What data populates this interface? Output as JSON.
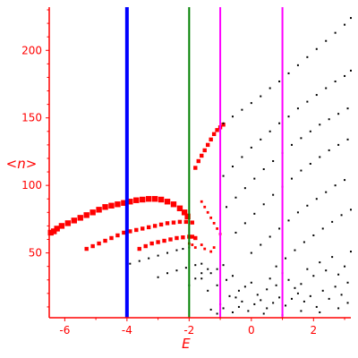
{
  "colors": {
    "axis": "#ff0000",
    "tick_label": "#ff0000",
    "red_points": "#ff0000",
    "black_points": "#000000",
    "blue_line": "#0000ff",
    "green_line": "#008000",
    "magenta_line": "#ff00ff"
  },
  "chart_data": {
    "type": "scatter",
    "title": "",
    "xlabel": "E",
    "ylabel": "<n>",
    "xlim": [
      -6.5,
      3.2
    ],
    "ylim": [
      2,
      232
    ],
    "x_ticks": [
      -6,
      -4,
      -2,
      0,
      2
    ],
    "y_ticks": [
      50,
      100,
      150,
      200
    ],
    "grid": false,
    "vertical_lines": [
      {
        "x": -4.0,
        "color": "#0000ff",
        "weight": "heavy"
      },
      {
        "x": -2.0,
        "color": "#008000",
        "weight": "medium"
      },
      {
        "x": -1.0,
        "color": "#ff00ff",
        "weight": "medium"
      },
      {
        "x": 1.0,
        "color": "#ff00ff",
        "weight": "medium"
      }
    ],
    "series": [
      {
        "color": "#ff0000",
        "marker": "large",
        "points": [
          [
            -6.45,
            65
          ],
          [
            -6.35,
            66
          ],
          [
            -6.25,
            68
          ],
          [
            -6.1,
            70
          ],
          [
            -5.9,
            72
          ],
          [
            -5.7,
            74
          ],
          [
            -5.5,
            76
          ],
          [
            -5.3,
            78
          ],
          [
            -5.1,
            80
          ],
          [
            -4.9,
            82
          ],
          [
            -4.7,
            84
          ],
          [
            -4.5,
            85
          ],
          [
            -4.3,
            86
          ],
          [
            -4.1,
            87
          ],
          [
            -3.9,
            88
          ],
          [
            -3.7,
            89
          ],
          [
            -3.5,
            89.5
          ],
          [
            -3.3,
            90
          ],
          [
            -3.1,
            90
          ],
          [
            -2.9,
            89.5
          ],
          [
            -2.7,
            88
          ],
          [
            -2.5,
            86
          ],
          [
            -2.3,
            83
          ],
          [
            -2.15,
            80
          ],
          [
            -2.05,
            77
          ]
        ]
      },
      {
        "color": "#ff0000",
        "marker": "medium",
        "points": [
          [
            -5.3,
            53
          ],
          [
            -5.1,
            55
          ],
          [
            -4.9,
            57
          ],
          [
            -4.7,
            59
          ],
          [
            -4.5,
            61
          ],
          [
            -4.3,
            63
          ],
          [
            -4.1,
            65
          ],
          [
            -3.9,
            66
          ],
          [
            -3.7,
            67
          ],
          [
            -3.5,
            68
          ],
          [
            -3.3,
            69
          ],
          [
            -3.1,
            70
          ],
          [
            -2.9,
            71
          ],
          [
            -2.7,
            72
          ],
          [
            -2.5,
            72.5
          ],
          [
            -2.3,
            73
          ],
          [
            -2.1,
            73
          ],
          [
            -1.9,
            72.5
          ]
        ]
      },
      {
        "color": "#ff0000",
        "marker": "medium",
        "points": [
          [
            -3.6,
            53
          ],
          [
            -3.4,
            55
          ],
          [
            -3.2,
            57
          ],
          [
            -3.0,
            58
          ],
          [
            -2.8,
            59
          ],
          [
            -2.6,
            60
          ],
          [
            -2.4,
            61
          ],
          [
            -2.2,
            61.5
          ],
          [
            -2.0,
            62
          ],
          [
            -1.9,
            62
          ],
          [
            -1.8,
            61
          ]
        ]
      },
      {
        "color": "#ff0000",
        "marker": "medium",
        "points": [
          [
            -1.8,
            113
          ],
          [
            -1.7,
            118
          ],
          [
            -1.6,
            122
          ],
          [
            -1.5,
            126
          ],
          [
            -1.4,
            130
          ],
          [
            -1.3,
            134
          ],
          [
            -1.2,
            138
          ],
          [
            -1.1,
            141
          ],
          [
            -1.0,
            143
          ],
          [
            -0.9,
            145
          ]
        ]
      },
      {
        "color": "#ff0000",
        "marker": "small",
        "points": [
          [
            -1.6,
            88
          ],
          [
            -1.5,
            84
          ],
          [
            -1.4,
            80
          ],
          [
            -1.3,
            76
          ],
          [
            -1.2,
            72
          ],
          [
            -1.1,
            68
          ],
          [
            -1.0,
            64
          ],
          [
            -2.0,
            57
          ],
          [
            -1.9,
            56
          ],
          [
            -1.8,
            54
          ],
          [
            -1.6,
            56
          ],
          [
            -1.5,
            53
          ],
          [
            -1.3,
            51
          ],
          [
            -1.2,
            54
          ]
        ]
      },
      {
        "color": "#000000",
        "marker": "tiny",
        "points": [
          [
            -0.9,
            146
          ],
          [
            -0.6,
            151
          ],
          [
            -0.3,
            156
          ],
          [
            0.0,
            161
          ],
          [
            0.3,
            166
          ],
          [
            0.6,
            172
          ],
          [
            0.9,
            177
          ],
          [
            1.2,
            183
          ],
          [
            1.5,
            189
          ],
          [
            1.8,
            195
          ],
          [
            2.1,
            201
          ],
          [
            2.4,
            207
          ],
          [
            2.7,
            213
          ],
          [
            3.0,
            219
          ],
          [
            3.2,
            224
          ]
        ]
      },
      {
        "color": "#000000",
        "marker": "tiny",
        "points": [
          [
            -0.9,
            107
          ],
          [
            -0.6,
            114
          ],
          [
            -0.3,
            121
          ],
          [
            0.0,
            128
          ],
          [
            0.3,
            134
          ],
          [
            0.6,
            140
          ],
          [
            0.9,
            146
          ],
          [
            1.2,
            151
          ],
          [
            1.5,
            157
          ],
          [
            1.8,
            162
          ],
          [
            2.1,
            167
          ],
          [
            2.4,
            172
          ],
          [
            2.7,
            177
          ],
          [
            3.0,
            181
          ],
          [
            3.2,
            185
          ]
        ]
      },
      {
        "color": "#000000",
        "marker": "tiny",
        "points": [
          [
            -0.8,
            84
          ],
          [
            -0.5,
            91
          ],
          [
            -0.2,
            98
          ],
          [
            0.1,
            105
          ],
          [
            0.4,
            112
          ],
          [
            0.7,
            118
          ],
          [
            1.0,
            124
          ],
          [
            1.3,
            130
          ],
          [
            1.6,
            135
          ],
          [
            1.9,
            140
          ],
          [
            2.2,
            145
          ],
          [
            2.5,
            149
          ],
          [
            2.8,
            153
          ],
          [
            3.1,
            157
          ]
        ]
      },
      {
        "color": "#000000",
        "marker": "tiny",
        "points": [
          [
            -0.5,
            65
          ],
          [
            -0.2,
            72
          ],
          [
            0.1,
            79
          ],
          [
            0.4,
            86
          ],
          [
            0.7,
            93
          ],
          [
            1.0,
            99
          ],
          [
            1.3,
            105
          ],
          [
            1.6,
            111
          ],
          [
            1.9,
            116
          ],
          [
            2.2,
            121
          ],
          [
            2.5,
            126
          ],
          [
            2.8,
            130
          ],
          [
            3.1,
            134
          ]
        ]
      },
      {
        "color": "#000000",
        "marker": "tiny",
        "points": [
          [
            0.0,
            50
          ],
          [
            0.3,
            56
          ],
          [
            0.6,
            62
          ],
          [
            0.9,
            68
          ],
          [
            1.2,
            74
          ],
          [
            1.5,
            80
          ],
          [
            1.8,
            85
          ],
          [
            2.1,
            90
          ],
          [
            2.4,
            95
          ],
          [
            2.7,
            100
          ],
          [
            3.0,
            104
          ]
        ]
      },
      {
        "color": "#000000",
        "marker": "tiny",
        "points": [
          [
            0.8,
            40
          ],
          [
            1.1,
            46
          ],
          [
            1.4,
            52
          ],
          [
            1.7,
            58
          ],
          [
            2.0,
            63
          ],
          [
            2.3,
            68
          ],
          [
            2.6,
            73
          ],
          [
            2.9,
            78
          ],
          [
            3.2,
            82
          ]
        ]
      },
      {
        "color": "#000000",
        "marker": "tiny",
        "points": [
          [
            -3.9,
            42
          ],
          [
            -3.6,
            44
          ],
          [
            -3.3,
            46
          ],
          [
            -3.0,
            48
          ],
          [
            -2.7,
            50
          ],
          [
            -2.4,
            52
          ],
          [
            -2.2,
            53
          ],
          [
            -2.0,
            54
          ]
        ]
      },
      {
        "color": "#000000",
        "marker": "tiny",
        "points": [
          [
            -3.0,
            32
          ],
          [
            -2.7,
            35
          ],
          [
            -2.4,
            37
          ],
          [
            -2.1,
            39
          ],
          [
            -1.8,
            41
          ],
          [
            -1.6,
            42
          ]
        ]
      },
      {
        "color": "#000000",
        "marker": "tiny",
        "points": [
          [
            -2.0,
            26
          ],
          [
            -1.8,
            31
          ],
          [
            -1.6,
            35
          ],
          [
            -1.4,
            38
          ]
        ]
      },
      {
        "color": "#000000",
        "marker": "tiny",
        "points": [
          [
            -1.6,
            31
          ],
          [
            -1.3,
            35
          ],
          [
            -1.1,
            38
          ],
          [
            -0.9,
            41
          ],
          [
            -1.4,
            22
          ],
          [
            -1.1,
            26
          ],
          [
            -0.8,
            30
          ],
          [
            -0.6,
            33
          ],
          [
            -1.0,
            12
          ],
          [
            -0.7,
            18
          ],
          [
            -0.4,
            22
          ],
          [
            -0.2,
            25
          ],
          [
            -1.3,
            8
          ],
          [
            -1.1,
            5
          ],
          [
            -0.9,
            9
          ],
          [
            -0.6,
            6
          ],
          [
            -0.4,
            10
          ],
          [
            -0.1,
            7
          ],
          [
            0.1,
            12
          ],
          [
            0.3,
            15
          ],
          [
            0.5,
            9
          ],
          [
            0.7,
            13
          ],
          [
            0.9,
            17
          ],
          [
            1.1,
            11
          ],
          [
            1.3,
            16
          ],
          [
            1.5,
            20
          ],
          [
            1.7,
            14
          ],
          [
            1.9,
            18
          ],
          [
            2.1,
            10
          ],
          [
            2.3,
            22
          ],
          [
            2.5,
            16
          ],
          [
            2.7,
            25
          ],
          [
            2.9,
            19
          ],
          [
            3.1,
            28
          ],
          [
            0.2,
            19
          ],
          [
            0.5,
            23
          ],
          [
            0.8,
            26
          ],
          [
            1.2,
            30
          ],
          [
            1.6,
            27
          ],
          [
            2.0,
            33
          ],
          [
            2.4,
            37
          ],
          [
            2.8,
            34
          ],
          [
            3.0,
            40
          ],
          [
            0.0,
            28
          ],
          [
            -0.3,
            14
          ],
          [
            0.6,
            31
          ],
          [
            1.0,
            35
          ],
          [
            1.4,
            24
          ],
          [
            1.8,
            38
          ],
          [
            2.2,
            43
          ],
          [
            2.6,
            47
          ],
          [
            3.2,
            51
          ],
          [
            -0.5,
            17
          ],
          [
            0.4,
            5
          ],
          [
            1.0,
            4
          ],
          [
            1.6,
            7
          ],
          [
            2.2,
            6
          ],
          [
            2.8,
            9
          ],
          [
            3.1,
            13
          ]
        ]
      }
    ]
  }
}
